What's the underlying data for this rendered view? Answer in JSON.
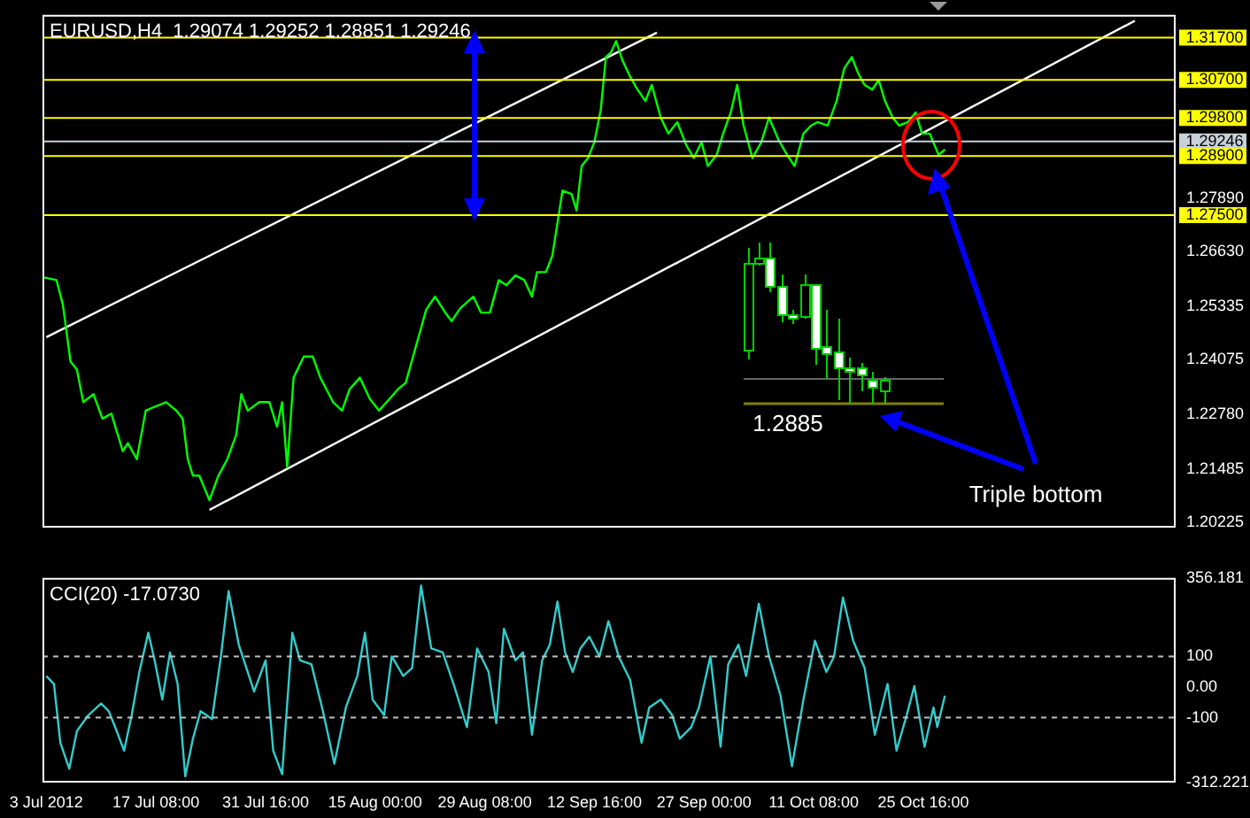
{
  "chart_data": [
    {
      "type": "line",
      "title": "EURUSD,H4  1.29074 1.29252 1.28851 1.29246",
      "marker": "none",
      "tick_labels": "y",
      "xlim": [
        "2012-07-02T12:00",
        "2012-11-27T16:00"
      ],
      "ylim": [
        1.201,
        1.3224
      ],
      "yticks": [
        {
          "value": 1.2789,
          "label": "1.27890"
        },
        {
          "value": 1.2663,
          "label": "1.26630"
        },
        1.25335,
        1.24075,
        {
          "value": 1.2278,
          "label": "1.22780"
        },
        1.21485,
        1.20225
      ],
      "series": [
        {
          "color": "#00ff00",
          "x": [
            "2012-07-02T12:00",
            "2012-07-04T08:00",
            "2012-07-05T04:00",
            "2012-07-06T04:00",
            "2012-07-07T00:00",
            "2012-07-07T20:00",
            "2012-07-09T04:00",
            "2012-07-10T08:00",
            "2012-07-11T12:00",
            "2012-07-13T00:00",
            "2012-07-13T16:00",
            "2012-07-14T20:00",
            "2012-07-16T00:00",
            "2012-07-17T00:00",
            "2012-07-18T16:00",
            "2012-07-20T00:00",
            "2012-07-20T20:00",
            "2012-07-21T12:00",
            "2012-07-22T04:00",
            "2012-07-23T00:00",
            "2012-07-24T08:00",
            "2012-07-25T12:00",
            "2012-07-26T16:00",
            "2012-07-27T20:00",
            "2012-07-28T12:00",
            "2012-07-29T08:00",
            "2012-07-30T20:00",
            "2012-08-01T04:00",
            "2012-08-02T04:00",
            "2012-08-02T20:00",
            "2012-08-03T12:00",
            "2012-08-04T08:00",
            "2012-08-05T16:00",
            "2012-08-06T20:00",
            "2012-08-07T20:00",
            "2012-08-09T12:00",
            "2012-08-10T16:00",
            "2012-08-11T16:00",
            "2012-08-13T00:00",
            "2012-08-14T08:00",
            "2012-08-15T12:00",
            "2012-08-16T20:00",
            "2012-08-18T00:00",
            "2012-08-19T00:00",
            "2012-08-20T16:00",
            "2012-08-21T16:00",
            "2012-08-22T20:00",
            "2012-08-24T04:00",
            "2012-08-25T00:00",
            "2012-08-26T04:00",
            "2012-08-27T20:00",
            "2012-08-28T20:00",
            "2012-08-30T00:00",
            "2012-08-31T04:00",
            "2012-09-01T04:00",
            "2012-09-02T08:00",
            "2012-09-03T12:00",
            "2012-09-04T12:00",
            "2012-09-05T04:00",
            "2012-09-06T08:00",
            "2012-09-07T04:00",
            "2012-09-07T20:00",
            "2012-09-08T12:00",
            "2012-09-09T16:00",
            "2012-09-10T08:00",
            "2012-09-11T00:00",
            "2012-09-11T20:00",
            "2012-09-12T16:00",
            "2012-09-13T12:00",
            "2012-09-14T04:00",
            "2012-09-14T20:00",
            "2012-09-15T12:00",
            "2012-09-16T08:00",
            "2012-09-17T08:00",
            "2012-09-18T04:00",
            "2012-09-19T08:00",
            "2012-09-20T04:00",
            "2012-09-21T08:00",
            "2012-09-22T08:00",
            "2012-09-23T12:00",
            "2012-09-24T16:00",
            "2012-09-25T16:00",
            "2012-09-26T16:00",
            "2012-09-27T12:00",
            "2012-09-28T16:00",
            "2012-09-29T12:00",
            "2012-09-30T12:00",
            "2012-10-01T08:00",
            "2012-10-02T04:00",
            "2012-10-03T08:00",
            "2012-10-04T12:00",
            "2012-10-05T12:00",
            "2012-10-06T16:00",
            "2012-10-07T20:00",
            "2012-10-08T20:00",
            "2012-10-10T00:00",
            "2012-10-11T00:00",
            "2012-10-11T20:00",
            "2012-10-13T04:00",
            "2012-10-14T08:00",
            "2012-10-15T08:00",
            "2012-10-16T08:00",
            "2012-10-17T04:00",
            "2012-10-18T00:00",
            "2012-10-19T00:00",
            "2012-10-19T20:00",
            "2012-10-20T16:00",
            "2012-10-21T16:00",
            "2012-10-22T12:00",
            "2012-10-23T16:00",
            "2012-10-24T16:00",
            "2012-10-25T12:00",
            "2012-10-26T12:00",
            "2012-10-27T16:00",
            "2012-10-28T12:00"
          ],
          "values": [
            1.2603,
            1.2596,
            1.2538,
            1.2403,
            1.2384,
            1.2307,
            1.2326,
            1.2268,
            1.228,
            1.2191,
            1.221,
            1.2172,
            1.2287,
            1.2295,
            1.2307,
            1.2287,
            1.2268,
            1.2172,
            1.2133,
            1.2133,
            1.2075,
            1.2133,
            1.2172,
            1.223,
            1.2326,
            1.2287,
            1.2307,
            1.2307,
            1.2249,
            1.2307,
            1.2153,
            1.2365,
            1.2415,
            1.2415,
            1.2365,
            1.2307,
            1.2287,
            1.2338,
            1.2365,
            1.2314,
            1.2287,
            1.2314,
            1.2338,
            1.2353,
            1.2461,
            1.2526,
            1.2557,
            1.2519,
            1.2499,
            1.253,
            1.2557,
            1.2519,
            1.2519,
            1.2596,
            1.2584,
            1.2607,
            1.2596,
            1.2557,
            1.2615,
            1.2615,
            1.2654,
            1.2731,
            1.2808,
            1.28,
            1.2761,
            1.2866,
            1.2885,
            1.2923,
            1.3,
            1.3124,
            1.3135,
            1.3162,
            1.3116,
            1.3078,
            1.3051,
            1.302,
            1.3058,
            1.2981,
            1.2943,
            1.297,
            1.2916,
            1.2885,
            1.2923,
            1.2866,
            1.2893,
            1.2943,
            1.2993,
            1.3058,
            1.2962,
            1.2885,
            1.2923,
            1.2981,
            1.2931,
            1.2893,
            1.2866,
            1.2943,
            1.2962,
            1.297,
            1.2962,
            1.302,
            1.3097,
            1.3124,
            1.3085,
            1.3058,
            1.3047,
            1.307,
            1.302,
            1.2981,
            1.2962,
            1.297,
            1.2993,
            1.2943,
            1.2943,
            1.2893,
            1.2905
          ]
        },
        {
          "type": "line",
          "color": "#ffffff",
          "x": [
            "2012-07-03T00:00",
            "2012-09-20T20:00"
          ],
          "values": [
            1.2461,
            1.3182
          ]
        },
        {
          "type": "line",
          "color": "#ffffff",
          "x": [
            "2012-07-24T08:00",
            "2012-11-22T08:00"
          ],
          "values": [
            1.2052,
            1.321
          ]
        }
      ],
      "ref_lines": [
        {
          "axis": "y",
          "value": 1.317,
          "label": "1.31700",
          "color": "#ffff00"
        },
        {
          "axis": "y",
          "value": 1.307,
          "label": "1.30700",
          "color": "#ffff00"
        },
        {
          "axis": "y",
          "value": 1.298,
          "label": "1.29800",
          "color": "#ffff00"
        },
        {
          "axis": "y",
          "value": 1.29246,
          "label": "1.29246",
          "color": "#c8d0d8"
        },
        {
          "axis": "y",
          "value": 1.289,
          "label": "1.28900",
          "color": "#ffff00"
        },
        {
          "axis": "y",
          "value": 1.275,
          "label": "1.27500",
          "color": "#ffff00"
        }
      ],
      "annotations": [
        "1.2885",
        "Triple bottom"
      ]
    },
    {
      "type": "line",
      "title": "CCI(20) -17.0730",
      "marker": "none",
      "xlim": [
        "2012-07-02T12:00",
        "2012-11-27T16:00"
      ],
      "xticks": [
        {
          "value": "2012-07-03T00:00",
          "label": "3 Jul 2012"
        },
        {
          "value": "2012-07-17T08:00",
          "label": "17 Jul 08:00"
        },
        {
          "value": "2012-07-31T16:00",
          "label": "31 Jul 16:00"
        },
        {
          "value": "2012-08-15T00:00",
          "label": "15 Aug 00:00"
        },
        {
          "value": "2012-08-29T08:00",
          "label": "29 Aug 08:00"
        },
        {
          "value": "2012-09-12T16:00",
          "label": "12 Sep 16:00"
        },
        {
          "value": "2012-09-27T00:00",
          "label": "27 Sep 00:00"
        },
        {
          "value": "2012-10-11T08:00",
          "label": "11 Oct 08:00"
        },
        {
          "value": "2012-10-25T16:00",
          "label": "25 Oct 16:00"
        }
      ],
      "ylim": [
        -312.221,
        356.181
      ],
      "yticks": [
        356.181,
        100,
        {
          "value": 0,
          "label": "0.00"
        },
        -100,
        -312.221
      ],
      "series": [
        {
          "color": "#33cccc",
          "x": [
            "2012-07-03T00:00",
            "2012-07-04T00:00",
            "2012-07-04T20:00",
            "2012-07-06T00:00",
            "2012-07-07T00:00",
            "2012-07-08T12:00",
            "2012-07-10T04:00",
            "2012-07-11T04:00",
            "2012-07-12T00:00",
            "2012-07-13T04:00",
            "2012-07-14T04:00",
            "2012-07-15T04:00",
            "2012-07-16T08:00",
            "2012-07-17T04:00",
            "2012-07-18T04:00",
            "2012-07-19T04:00",
            "2012-07-20T04:00",
            "2012-07-21T04:00",
            "2012-07-22T04:00",
            "2012-07-23T04:00",
            "2012-07-24T16:00",
            "2012-07-25T20:00",
            "2012-07-26T20:00",
            "2012-07-28T04:00",
            "2012-07-29T04:00",
            "2012-07-30T04:00",
            "2012-07-31T16:00",
            "2012-08-01T16:00",
            "2012-08-02T20:00",
            "2012-08-04T04:00",
            "2012-08-05T04:00",
            "2012-08-06T16:00",
            "2012-08-08T04:00",
            "2012-08-09T16:00",
            "2012-08-11T04:00",
            "2012-08-12T16:00",
            "2012-08-13T16:00",
            "2012-08-14T16:00",
            "2012-08-16T04:00",
            "2012-08-17T04:00",
            "2012-08-18T16:00",
            "2012-08-19T20:00",
            "2012-08-21T00:00",
            "2012-08-22T08:00",
            "2012-08-23T20:00",
            "2012-08-25T08:00",
            "2012-08-27T00:00",
            "2012-08-28T08:00",
            "2012-08-29T20:00",
            "2012-08-30T20:00",
            "2012-08-31T20:00",
            "2012-09-02T08:00",
            "2012-09-03T08:00",
            "2012-09-04T12:00",
            "2012-09-05T20:00",
            "2012-09-06T20:00",
            "2012-09-07T20:00",
            "2012-09-08T20:00",
            "2012-09-09T20:00",
            "2012-09-10T20:00",
            "2012-09-12T00:00",
            "2012-09-13T08:00",
            "2012-09-14T12:00",
            "2012-09-15T20:00",
            "2012-09-17T08:00",
            "2012-09-18T20:00",
            "2012-09-19T20:00",
            "2012-09-21T08:00",
            "2012-09-22T20:00",
            "2012-09-23T20:00",
            "2012-09-25T08:00",
            "2012-09-26T08:00",
            "2012-09-27T20:00",
            "2012-09-29T04:00",
            "2012-09-30T04:00",
            "2012-10-01T12:00",
            "2012-10-02T12:00",
            "2012-10-04T04:00",
            "2012-10-05T12:00",
            "2012-10-07T00:00",
            "2012-10-08T12:00",
            "2012-10-10T00:00",
            "2012-10-11T12:00",
            "2012-10-13T00:00",
            "2012-10-14T00:00",
            "2012-10-15T04:00",
            "2012-10-16T12:00",
            "2012-10-18T00:00",
            "2012-10-19T08:00",
            "2012-10-21T00:00",
            "2012-10-22T04:00",
            "2012-10-23T12:00",
            "2012-10-24T12:00",
            "2012-10-25T20:00",
            "2012-10-27T00:00",
            "2012-10-27T12:00",
            "2012-10-28T12:00"
          ],
          "values": [
            36,
            10,
            -182,
            -267,
            -144,
            -92,
            -54,
            -79,
            -131,
            -208,
            -92,
            49,
            177,
            87,
            -41,
            113,
            10,
            -292,
            -169,
            -79,
            -105,
            100,
            313,
            138,
            62,
            -15,
            87,
            -208,
            -285,
            177,
            87,
            74,
            -79,
            -251,
            -67,
            36,
            177,
            -41,
            -92,
            100,
            36,
            62,
            331,
            126,
            113,
            3,
            -131,
            126,
            49,
            -118,
            190,
            87,
            113,
            -156,
            87,
            138,
            279,
            113,
            49,
            126,
            164,
            100,
            215,
            100,
            23,
            -182,
            -67,
            -41,
            -92,
            -169,
            -131,
            -67,
            100,
            -195,
            74,
            138,
            36,
            272,
            100,
            -28,
            -259,
            -41,
            151,
            49,
            100,
            292,
            151,
            62,
            -156,
            10,
            -208,
            -92,
            3,
            -195,
            -67,
            -131,
            -28
          ]
        }
      ],
      "ref_lines": [
        {
          "axis": "y",
          "value": 100,
          "color": "#c0c0c0",
          "line_style": "dashed"
        },
        {
          "axis": "y",
          "value": -100,
          "color": "#c0c0c0",
          "line_style": "dashed"
        }
      ]
    }
  ]
}
